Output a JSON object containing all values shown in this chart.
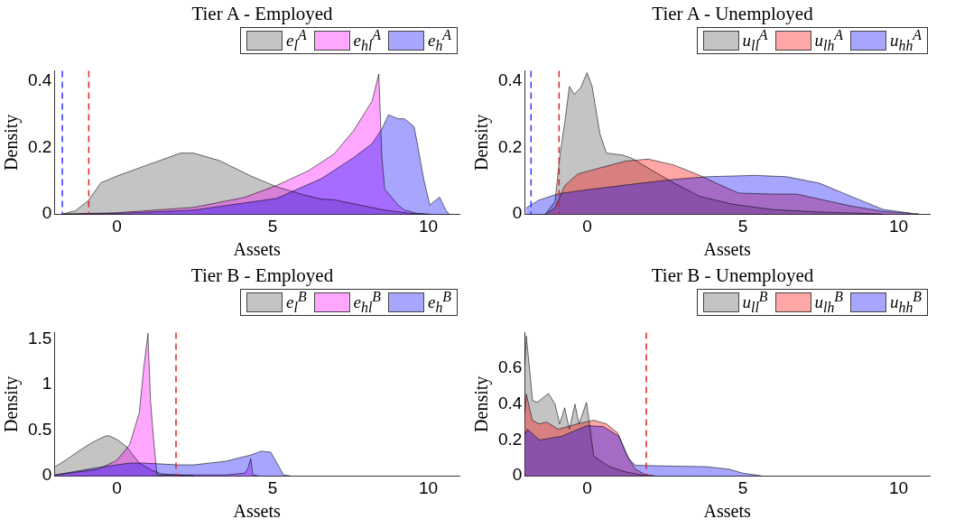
{
  "chart_data": [
    {
      "type": "area",
      "title": "Tier A - Employed",
      "xlabel": "Assets",
      "ylabel": "Density",
      "xlim": [
        -2,
        11
      ],
      "xticks": [
        0,
        5,
        10
      ],
      "ylim": [
        0,
        0.43
      ],
      "yticks": [
        0,
        0.2,
        0.4
      ],
      "grid": false,
      "legend": "top right",
      "series": [
        {
          "name": "e$_{l}$$^{A}$",
          "color": "#555555",
          "x": [
            -1.75,
            -1.33,
            -0.92,
            -0.51,
            0,
            1.03,
            2.05,
            2.46,
            3.28,
            4.31,
            5.13,
            5.95,
            6.56,
            6.97,
            7.8,
            8.6,
            9.4,
            9.85
          ],
          "values": [
            0,
            0.01,
            0.04,
            0.094,
            0.114,
            0.149,
            0.183,
            0.183,
            0.161,
            0.114,
            0.082,
            0.059,
            0.045,
            0.043,
            0.027,
            0.012,
            0.002,
            0
          ]
        },
        {
          "name": "e$_{hl}$$^{A}$",
          "color": "#ff00ff",
          "x": [
            -1.75,
            0,
            2.46,
            4.1,
            5.13,
            6.15,
            6.97,
            7.6,
            8.0,
            8.2,
            8.41,
            8.51,
            8.6,
            9.03,
            9.23,
            9.64,
            10.05
          ],
          "values": [
            0,
            0.004,
            0.02,
            0.05,
            0.086,
            0.13,
            0.18,
            0.25,
            0.31,
            0.34,
            0.42,
            0.17,
            0.075,
            0.027,
            0.012,
            0.002,
            0
          ]
        },
        {
          "name": "e$_{h}$$^{A}$",
          "color": "#0000ff",
          "x": [
            -1.75,
            0,
            2.46,
            5.13,
            6.56,
            7.6,
            8.2,
            8.51,
            8.72,
            9.03,
            9.23,
            9.54,
            9.64,
            9.85,
            10.05,
            10.36,
            10.56,
            10.67
          ],
          "values": [
            0,
            0.002,
            0.012,
            0.047,
            0.106,
            0.169,
            0.212,
            0.255,
            0.298,
            0.286,
            0.286,
            0.263,
            0.216,
            0.106,
            0.027,
            0.051,
            0.012,
            0
          ]
        }
      ],
      "ref_lines": [
        {
          "axis": "x",
          "value": -1.75,
          "color": "#3333ff",
          "line_style": "dashed"
        },
        {
          "axis": "x",
          "value": -0.9,
          "color": "#dd2222",
          "line_style": "dashed"
        }
      ]
    },
    {
      "type": "area",
      "title": "Tier A - Unemployed",
      "xlabel": "Assets",
      "ylabel": "Density",
      "xlim": [
        -2,
        11
      ],
      "xticks": [
        0,
        5,
        10
      ],
      "ylim": [
        0,
        0.43
      ],
      "yticks": [
        0,
        0.2,
        0.4
      ],
      "grid": false,
      "legend": "top right",
      "series": [
        {
          "name": "u$_{ll}$$^{A}$",
          "color": "#555555",
          "x": [
            -1.34,
            -1.03,
            -0.88,
            -0.72,
            -0.57,
            -0.41,
            -0.21,
            0,
            0.16,
            0.41,
            0.62,
            1.14,
            1.45,
            2.07,
            2.79,
            3.62,
            4.65,
            5.9,
            7.45,
            9.0,
            9.5
          ],
          "values": [
            0,
            0.038,
            0.171,
            0.273,
            0.383,
            0.359,
            0.379,
            0.424,
            0.383,
            0.242,
            0.183,
            0.177,
            0.167,
            0.132,
            0.093,
            0.053,
            0.03,
            0.014,
            0.006,
            0.002,
            0
          ]
        },
        {
          "name": "u$_{lh}$$^{A}$",
          "color": "#ff0000",
          "x": [
            -1.34,
            -1.03,
            -0.72,
            -0.31,
            0.31,
            1.24,
            1.96,
            2.79,
            3.62,
            4.14,
            4.86,
            5.9,
            6.73,
            7.45,
            8.48,
            9.5,
            10.4
          ],
          "values": [
            0,
            0.018,
            0.085,
            0.12,
            0.136,
            0.159,
            0.165,
            0.147,
            0.116,
            0.093,
            0.063,
            0.06,
            0.06,
            0.045,
            0.024,
            0.008,
            0.002
          ]
        },
        {
          "name": "u$_{hh}$$^{A}$",
          "color": "#0000ff",
          "x": [
            -1.96,
            -1.55,
            -0.93,
            0,
            1.76,
            2.79,
            3.83,
            5.38,
            6.41,
            7.45,
            8.48,
            9.5,
            10.44,
            10.65
          ],
          "values": [
            0.018,
            0.042,
            0.061,
            0.073,
            0.093,
            0.104,
            0.112,
            0.116,
            0.112,
            0.093,
            0.053,
            0.014,
            0.002,
            0.001
          ]
        }
      ],
      "ref_lines": [
        {
          "axis": "x",
          "value": -1.8,
          "color": "#3333ff",
          "line_style": "dashed"
        },
        {
          "axis": "x",
          "value": -0.9,
          "color": "#dd2222",
          "line_style": "dashed"
        }
      ]
    },
    {
      "type": "area",
      "title": "Tier B - Employed",
      "xlabel": "Assets",
      "ylabel": "Density",
      "xlim": [
        -2,
        11
      ],
      "xticks": [
        0,
        5,
        10
      ],
      "ylim": [
        0,
        1.57
      ],
      "yticks": [
        0,
        0.5,
        1,
        1.5
      ],
      "grid": false,
      "legend": "top right",
      "series": [
        {
          "name": "e$_{l}$$^{B}$",
          "color": "#555555",
          "x": [
            -1.98,
            -1.65,
            -1.23,
            -0.82,
            -0.41,
            -0.26,
            0,
            0.31,
            0.72,
            1.13,
            1.44,
            1.95,
            2.47
          ],
          "values": [
            0.1,
            0.17,
            0.27,
            0.36,
            0.43,
            0.44,
            0.4,
            0.32,
            0.14,
            0.06,
            0.02,
            0.01,
            0
          ]
        },
        {
          "name": "e$_{hl}$$^{B}$",
          "color": "#ff00ff",
          "x": [
            -1.98,
            -0.62,
            0,
            0.41,
            0.72,
            0.87,
            1.0,
            1.08,
            1.18,
            1.29,
            1.65,
            2.47,
            3.5,
            4.12,
            4.22,
            4.3,
            4.37,
            4.53
          ],
          "values": [
            0.01,
            0.07,
            0.17,
            0.34,
            0.69,
            1.2,
            1.56,
            0.83,
            0.4,
            0.01,
            0.01,
            0.01,
            0.01,
            0.03,
            0.09,
            0.19,
            0.01,
            0
          ]
        },
        {
          "name": "e$_{h}$$^{B}$",
          "color": "#0000ff",
          "x": [
            -1.98,
            -0.62,
            0.41,
            0.82,
            1.44,
            1.95,
            2.47,
            3.5,
            4.32,
            4.63,
            4.94,
            5.14,
            5.35,
            5.56
          ],
          "values": [
            0.01,
            0.09,
            0.14,
            0.14,
            0.13,
            0.12,
            0.12,
            0.16,
            0.23,
            0.27,
            0.26,
            0.14,
            0.01,
            0
          ]
        }
      ],
      "ref_lines": [
        {
          "axis": "x",
          "value": 1.9,
          "color": "#dd2222",
          "line_style": "dashed"
        }
      ]
    },
    {
      "type": "area",
      "title": "Tier B - Unemployed",
      "xlabel": "Assets",
      "ylabel": "Density",
      "xlim": [
        -2,
        11
      ],
      "xticks": [
        0,
        5,
        10
      ],
      "ylim": [
        0,
        0.8
      ],
      "yticks": [
        0,
        0.2,
        0.4,
        0.6
      ],
      "grid": false,
      "legend": "top right",
      "series": [
        {
          "name": "u$_{ll}$$^{B}$",
          "color": "#555555",
          "x": [
            -2,
            -1.95,
            -1.85,
            -1.75,
            -1.6,
            -1.24,
            -1.03,
            -0.88,
            -0.72,
            -0.57,
            -0.39,
            -0.26,
            -0.02,
            0.1,
            0.21,
            0.72,
            1.24,
            1.76,
            1.96
          ],
          "values": [
            0.62,
            0.78,
            0.6,
            0.42,
            0.41,
            0.46,
            0.4,
            0.29,
            0.38,
            0.26,
            0.4,
            0.29,
            0.41,
            0.26,
            0.11,
            0.051,
            0.022,
            0.004,
            0
          ]
        },
        {
          "name": "u$_{lh}$$^{B}$",
          "color": "#ff0000",
          "x": [
            -2,
            -1.95,
            -1.76,
            -1.55,
            -1.3,
            -0.93,
            -0.31,
            0.21,
            0.62,
            0.98,
            1.24,
            1.55,
            1.86,
            2.17
          ],
          "values": [
            0.35,
            0.456,
            0.31,
            0.29,
            0.3,
            0.26,
            0.29,
            0.31,
            0.29,
            0.24,
            0.125,
            0.037,
            0.007,
            0
          ]
        },
        {
          "name": "u$_{hh}$$^{B}$",
          "color": "#0000ff",
          "x": [
            -2,
            -1.92,
            -1.53,
            -0.83,
            0,
            0.52,
            1.03,
            1.34,
            1.55,
            2.27,
            3.83,
            4.55,
            5.0,
            5.6
          ],
          "values": [
            0.23,
            0.26,
            0.2,
            0.22,
            0.28,
            0.275,
            0.22,
            0.096,
            0.059,
            0.056,
            0.051,
            0.037,
            0.015,
            0
          ]
        }
      ],
      "ref_lines": [
        {
          "axis": "x",
          "value": 1.9,
          "color": "#dd2222",
          "line_style": "dashed"
        }
      ]
    }
  ]
}
